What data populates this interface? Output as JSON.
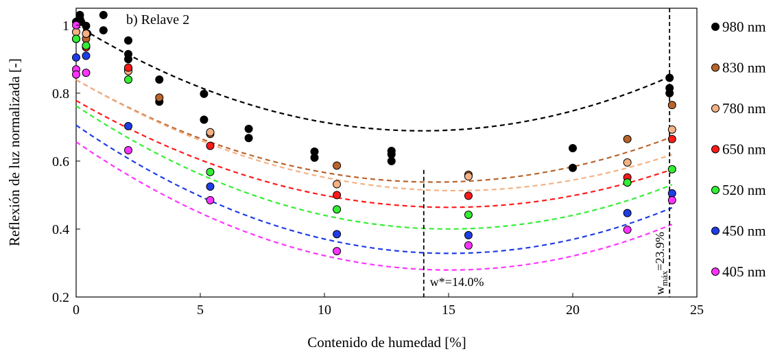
{
  "chart_data": {
    "type": "scatter",
    "panel_label": "b) Relave 2",
    "xlabel": "Contenido de humedad [%]",
    "ylabel": "Reflexión de luz normalizada [-]",
    "xlim": [
      0,
      25
    ],
    "ylim": [
      0.2,
      1.05
    ],
    "x_ticks": [
      0,
      5,
      10,
      15,
      20,
      25
    ],
    "y_ticks": [
      0.2,
      0.4,
      0.6,
      0.8,
      1
    ],
    "x_tick_labels": [
      "0",
      "5",
      "10",
      "15",
      "20",
      "25"
    ],
    "y_tick_labels": [
      "0.2",
      "0.4",
      "0.6",
      "0.8",
      "1"
    ],
    "grid": false,
    "legend_position": "right",
    "series": [
      {
        "name": "980 nm",
        "color": "#000000",
        "points": [
          [
            0,
            1.01
          ],
          [
            0.15,
            1.03
          ],
          [
            0.15,
            1.02
          ],
          [
            0.2,
            1.01
          ],
          [
            0.4,
            0.998
          ],
          [
            0.45,
            0.975
          ],
          [
            1.1,
            1.03
          ],
          [
            1.1,
            0.985
          ],
          [
            2.1,
            0.955
          ],
          [
            2.1,
            0.915
          ],
          [
            2.1,
            0.9
          ],
          [
            3.35,
            0.84
          ],
          [
            3.35,
            0.775
          ],
          [
            5.15,
            0.798
          ],
          [
            5.15,
            0.722
          ],
          [
            6.95,
            0.695
          ],
          [
            6.95,
            0.668
          ],
          [
            9.6,
            0.628
          ],
          [
            9.6,
            0.61
          ],
          [
            12.7,
            0.63
          ],
          [
            12.7,
            0.62
          ],
          [
            12.7,
            0.6
          ],
          [
            20,
            0.638
          ],
          [
            20,
            0.58
          ],
          [
            23.9,
            0.845
          ],
          [
            23.9,
            0.815
          ],
          [
            23.9,
            0.8
          ]
        ],
        "trend": {
          "a": 0.0016,
          "b": -0.0446,
          "c": 1.0
        }
      },
      {
        "name": "830 nm",
        "color": "#b8642c",
        "points": [
          [
            0,
            0.96
          ],
          [
            0.4,
            0.96
          ],
          [
            2.1,
            0.87
          ],
          [
            3.35,
            0.787
          ],
          [
            5.4,
            0.68
          ],
          [
            10.5,
            0.587
          ],
          [
            15.8,
            0.56
          ],
          [
            22.2,
            0.665
          ],
          [
            24,
            0.765
          ]
        ],
        "trend": {
          "a": 0.00145,
          "b": -0.0418,
          "c": 0.8395
        }
      },
      {
        "name": "780 nm",
        "color": "#f4b183",
        "points": [
          [
            0,
            0.98
          ],
          [
            0.4,
            0.975
          ],
          [
            2.1,
            0.865
          ],
          [
            5.4,
            0.685
          ],
          [
            10.5,
            0.532
          ],
          [
            15.8,
            0.555
          ],
          [
            22.2,
            0.596
          ],
          [
            24,
            0.693
          ]
        ],
        "trend": {
          "a": 0.0014,
          "b": -0.0428,
          "c": 0.8402
        }
      },
      {
        "name": "650 nm",
        "color": "#ff1a1a",
        "points": [
          [
            0,
            0.96
          ],
          [
            0.4,
            0.935
          ],
          [
            2.1,
            0.875
          ],
          [
            5.4,
            0.645
          ],
          [
            10.5,
            0.5
          ],
          [
            15.8,
            0.498
          ],
          [
            22.2,
            0.552
          ],
          [
            24,
            0.665
          ]
        ],
        "trend": {
          "a": 0.00139,
          "b": -0.0418,
          "c": 0.7782
        }
      },
      {
        "name": "520 nm",
        "color": "#33ee33",
        "points": [
          [
            0,
            0.96
          ],
          [
            0.4,
            0.94
          ],
          [
            2.1,
            0.84
          ],
          [
            5.4,
            0.568
          ],
          [
            10.5,
            0.458
          ],
          [
            15.8,
            0.442
          ],
          [
            22.2,
            0.537
          ],
          [
            24,
            0.576
          ]
        ],
        "trend": {
          "a": 0.00161,
          "b": -0.0483,
          "c": 0.7625
        }
      },
      {
        "name": "450 nm",
        "color": "#1f3de6",
        "points": [
          [
            0,
            0.905
          ],
          [
            0.4,
            0.91
          ],
          [
            2.1,
            0.703
          ],
          [
            5.4,
            0.525
          ],
          [
            10.5,
            0.385
          ],
          [
            15.8,
            0.382
          ],
          [
            22.2,
            0.447
          ],
          [
            24,
            0.505
          ]
        ],
        "trend": {
          "a": 0.00167,
          "b": -0.0502,
          "c": 0.7057
        }
      },
      {
        "name": "405 nm",
        "color": "#ff33ff",
        "points": [
          [
            0,
            0.87
          ],
          [
            0,
            0.855
          ],
          [
            0,
            1.0
          ],
          [
            0.4,
            0.86
          ],
          [
            2.1,
            0.632
          ],
          [
            5.4,
            0.485
          ],
          [
            10.5,
            0.335
          ],
          [
            15.8,
            0.352
          ],
          [
            22.2,
            0.398
          ],
          [
            24,
            0.485
          ]
        ],
        "trend": {
          "a": 0.00167,
          "b": -0.0502,
          "c": 0.6567
        }
      }
    ],
    "annotations": [
      {
        "type": "vline",
        "x": 14.0,
        "y_top": 0.574,
        "label": "w*=14.0%"
      },
      {
        "type": "vline",
        "x": 23.9,
        "y_top": 1.05,
        "label_main": "w",
        "label_sub": "máx",
        "label_rest": "=23.9%"
      }
    ]
  }
}
